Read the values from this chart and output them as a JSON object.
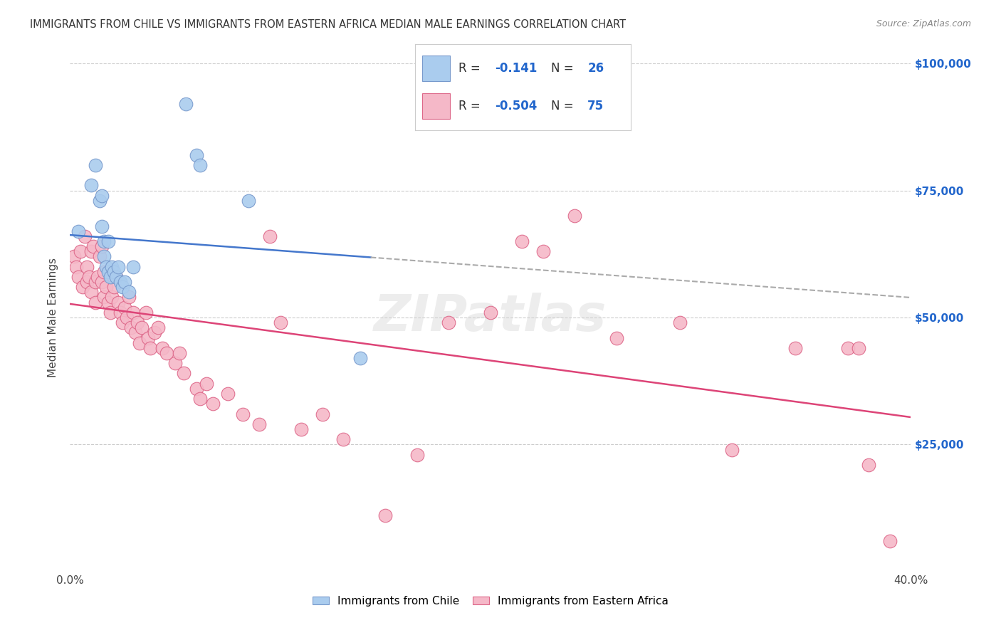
{
  "title": "IMMIGRANTS FROM CHILE VS IMMIGRANTS FROM EASTERN AFRICA MEDIAN MALE EARNINGS CORRELATION CHART",
  "source": "Source: ZipAtlas.com",
  "ylabel": "Median Male Earnings",
  "xlim": [
    0.0,
    0.4
  ],
  "ylim": [
    0,
    100000
  ],
  "background_color": "#ffffff",
  "grid_color": "#cccccc",
  "watermark": "ZIPatlas",
  "chile_color": "#aaccee",
  "chile_edge_color": "#7799cc",
  "ea_color": "#f5b8c8",
  "ea_edge_color": "#dd6688",
  "chile_R": -0.141,
  "chile_N": 26,
  "ea_R": -0.504,
  "ea_N": 75,
  "legend_label_color": "#333333",
  "legend_value_color": "#2266cc",
  "legend_N_color": "#2266cc",
  "chile_trend_color": "#4477cc",
  "ea_trend_color": "#dd4477",
  "dashed_trend_color": "#aaaaaa",
  "chile_scatter_x": [
    0.004,
    0.01,
    0.012,
    0.014,
    0.015,
    0.015,
    0.016,
    0.016,
    0.017,
    0.018,
    0.018,
    0.019,
    0.02,
    0.021,
    0.022,
    0.023,
    0.024,
    0.025,
    0.026,
    0.028,
    0.03,
    0.055,
    0.06,
    0.062,
    0.085,
    0.138
  ],
  "chile_scatter_y": [
    67000,
    76000,
    80000,
    73000,
    74000,
    68000,
    65000,
    62000,
    60000,
    59000,
    65000,
    58000,
    60000,
    59000,
    58000,
    60000,
    57000,
    56000,
    57000,
    55000,
    60000,
    92000,
    82000,
    80000,
    73000,
    42000
  ],
  "ea_scatter_x": [
    0.002,
    0.003,
    0.004,
    0.005,
    0.006,
    0.007,
    0.008,
    0.008,
    0.009,
    0.01,
    0.01,
    0.011,
    0.012,
    0.012,
    0.013,
    0.014,
    0.015,
    0.015,
    0.016,
    0.016,
    0.017,
    0.018,
    0.019,
    0.02,
    0.021,
    0.022,
    0.023,
    0.024,
    0.025,
    0.026,
    0.027,
    0.028,
    0.029,
    0.03,
    0.031,
    0.032,
    0.033,
    0.034,
    0.036,
    0.037,
    0.038,
    0.04,
    0.042,
    0.044,
    0.046,
    0.05,
    0.052,
    0.054,
    0.06,
    0.062,
    0.065,
    0.068,
    0.075,
    0.082,
    0.09,
    0.095,
    0.1,
    0.11,
    0.12,
    0.13,
    0.15,
    0.165,
    0.18,
    0.2,
    0.215,
    0.225,
    0.24,
    0.26,
    0.29,
    0.315,
    0.345,
    0.37,
    0.375,
    0.38,
    0.39
  ],
  "ea_scatter_y": [
    62000,
    60000,
    58000,
    63000,
    56000,
    66000,
    60000,
    57000,
    58000,
    63000,
    55000,
    64000,
    57000,
    53000,
    58000,
    62000,
    64000,
    57000,
    59000,
    54000,
    56000,
    53000,
    51000,
    54000,
    56000,
    58000,
    53000,
    51000,
    49000,
    52000,
    50000,
    54000,
    48000,
    51000,
    47000,
    49000,
    45000,
    48000,
    51000,
    46000,
    44000,
    47000,
    48000,
    44000,
    43000,
    41000,
    43000,
    39000,
    36000,
    34000,
    37000,
    33000,
    35000,
    31000,
    29000,
    66000,
    49000,
    28000,
    31000,
    26000,
    11000,
    23000,
    49000,
    51000,
    65000,
    63000,
    70000,
    46000,
    49000,
    24000,
    44000,
    44000,
    44000,
    21000,
    6000
  ]
}
